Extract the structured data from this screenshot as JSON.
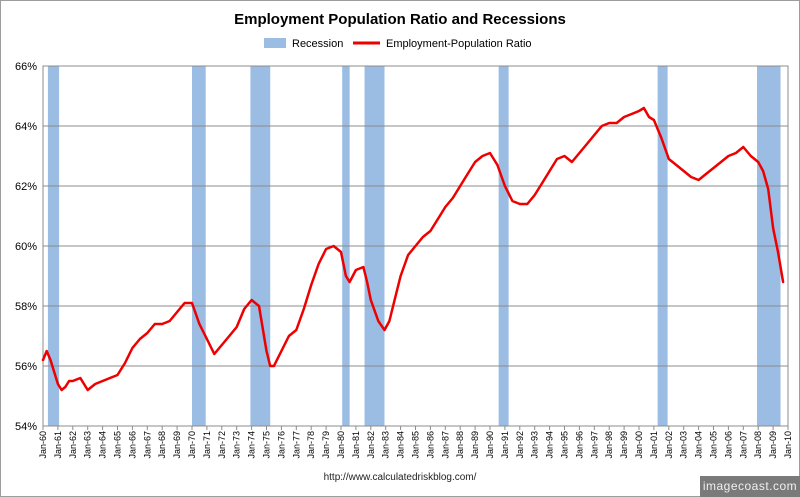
{
  "chart_data": {
    "type": "line",
    "title": "Employment Population Ratio and Recessions",
    "legend": {
      "position": "top-center",
      "items": [
        {
          "label": "Recession",
          "kind": "band",
          "color": "#9bbde4"
        },
        {
          "label": "Employment-Population Ratio",
          "kind": "line",
          "color": "#ee0000"
        }
      ]
    },
    "xlabel": "",
    "ylabel": "",
    "x_range": [
      "1960-01",
      "2010-01"
    ],
    "ylim": [
      54,
      66
    ],
    "y_ticks": [
      "54%",
      "56%",
      "58%",
      "60%",
      "62%",
      "64%",
      "66%"
    ],
    "y_tick_values": [
      54,
      56,
      58,
      60,
      62,
      64,
      66
    ],
    "x_ticks": [
      "Jan-60",
      "Jan-61",
      "Jan-62",
      "Jan-63",
      "Jan-64",
      "Jan-65",
      "Jan-66",
      "Jan-67",
      "Jan-68",
      "Jan-69",
      "Jan-70",
      "Jan-71",
      "Jan-72",
      "Jan-73",
      "Jan-74",
      "Jan-75",
      "Jan-76",
      "Jan-77",
      "Jan-78",
      "Jan-79",
      "Jan-80",
      "Jan-81",
      "Jan-82",
      "Jan-83",
      "Jan-84",
      "Jan-85",
      "Jan-86",
      "Jan-87",
      "Jan-88",
      "Jan-89",
      "Jan-90",
      "Jan-91",
      "Jan-92",
      "Jan-93",
      "Jan-94",
      "Jan-95",
      "Jan-96",
      "Jan-97",
      "Jan-98",
      "Jan-99",
      "Jan-00",
      "Jan-01",
      "Jan-02",
      "Jan-03",
      "Jan-04",
      "Jan-05",
      "Jan-06",
      "Jan-07",
      "Jan-08",
      "Jan-09",
      "Jan-10"
    ],
    "grid": {
      "horizontal": true,
      "vertical": false
    },
    "colors": {
      "plot_background": "#ffffff",
      "grid": "#8c8c8c",
      "recession": "#9bbde4",
      "line": "#ee0000"
    },
    "recessions": [
      {
        "start": 1960.33,
        "end": 1961.08
      },
      {
        "start": 1970.0,
        "end": 1970.92
      },
      {
        "start": 1973.92,
        "end": 1975.25
      },
      {
        "start": 1980.08,
        "end": 1980.58
      },
      {
        "start": 1981.58,
        "end": 1982.92
      },
      {
        "start": 1990.58,
        "end": 1991.25
      },
      {
        "start": 2001.25,
        "end": 2001.92
      },
      {
        "start": 2007.92,
        "end": 2009.5
      }
    ],
    "series": [
      {
        "name": "Employment-Population Ratio",
        "x": [
          1960.0,
          1960.25,
          1960.5,
          1960.75,
          1961.0,
          1961.25,
          1961.5,
          1961.75,
          1962.0,
          1962.5,
          1963.0,
          1963.5,
          1964.0,
          1964.5,
          1965.0,
          1965.5,
          1966.0,
          1966.5,
          1967.0,
          1967.5,
          1968.0,
          1968.5,
          1969.0,
          1969.5,
          1970.0,
          1970.5,
          1971.0,
          1971.5,
          1972.0,
          1972.5,
          1973.0,
          1973.5,
          1974.0,
          1974.5,
          1975.0,
          1975.25,
          1975.5,
          1976.0,
          1976.5,
          1977.0,
          1977.5,
          1978.0,
          1978.5,
          1979.0,
          1979.5,
          1980.0,
          1980.33,
          1980.58,
          1981.0,
          1981.5,
          1981.75,
          1982.0,
          1982.5,
          1982.92,
          1983.25,
          1983.5,
          1984.0,
          1984.5,
          1985.0,
          1985.5,
          1986.0,
          1986.5,
          1987.0,
          1987.5,
          1988.0,
          1988.5,
          1989.0,
          1989.5,
          1990.0,
          1990.5,
          1991.0,
          1991.5,
          1992.0,
          1992.5,
          1993.0,
          1993.5,
          1994.0,
          1994.5,
          1995.0,
          1995.5,
          1996.0,
          1996.5,
          1997.0,
          1997.5,
          1998.0,
          1998.5,
          1999.0,
          1999.5,
          2000.0,
          2000.33,
          2000.67,
          2001.0,
          2001.5,
          2002.0,
          2002.5,
          2003.0,
          2003.5,
          2004.0,
          2004.5,
          2005.0,
          2005.5,
          2006.0,
          2006.5,
          2007.0,
          2007.5,
          2008.0,
          2008.33,
          2008.67,
          2009.0,
          2009.33,
          2009.67
        ],
        "y": [
          56.2,
          56.5,
          56.2,
          55.8,
          55.4,
          55.2,
          55.3,
          55.5,
          55.5,
          55.6,
          55.2,
          55.4,
          55.5,
          55.6,
          55.7,
          56.1,
          56.6,
          56.9,
          57.1,
          57.4,
          57.4,
          57.5,
          57.8,
          58.1,
          58.1,
          57.4,
          56.9,
          56.4,
          56.7,
          57.0,
          57.3,
          57.9,
          58.2,
          58.0,
          56.5,
          56.0,
          56.0,
          56.5,
          57.0,
          57.2,
          57.9,
          58.7,
          59.4,
          59.9,
          60.0,
          59.8,
          59.0,
          58.8,
          59.2,
          59.3,
          58.8,
          58.2,
          57.5,
          57.2,
          57.5,
          58.0,
          59.0,
          59.7,
          60.0,
          60.3,
          60.5,
          60.9,
          61.3,
          61.6,
          62.0,
          62.4,
          62.8,
          63.0,
          63.1,
          62.7,
          62.0,
          61.5,
          61.4,
          61.4,
          61.7,
          62.1,
          62.5,
          62.9,
          63.0,
          62.8,
          63.1,
          63.4,
          63.7,
          64.0,
          64.1,
          64.1,
          64.3,
          64.4,
          64.5,
          64.6,
          64.3,
          64.2,
          63.6,
          62.9,
          62.7,
          62.5,
          62.3,
          62.2,
          62.4,
          62.6,
          62.8,
          63.0,
          63.1,
          63.3,
          63.0,
          62.8,
          62.5,
          61.9,
          60.6,
          59.8,
          58.8
        ]
      }
    ]
  },
  "footer": {
    "source": "http://www.calculatedriskblog.com/",
    "watermark": "imagecoast.com"
  }
}
